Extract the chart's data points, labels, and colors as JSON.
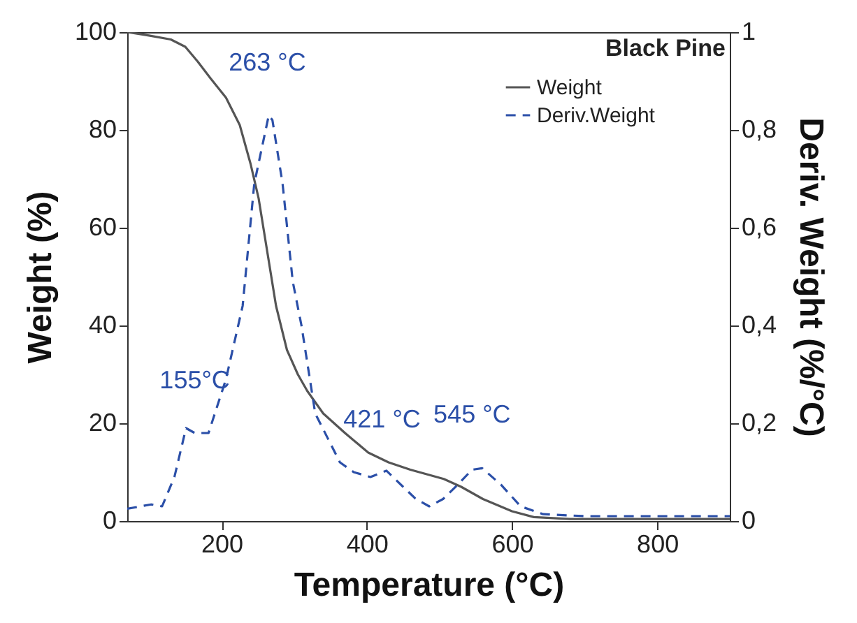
{
  "chart_data": {
    "type": "line",
    "xlabel": "Temperature (°C)",
    "ylabel": "Weight (%)",
    "y2label": "Deriv. Weight (%/°C)",
    "xlim": [
      70,
      900
    ],
    "xticks": [
      200,
      400,
      600,
      800
    ],
    "ylim": [
      0,
      100
    ],
    "yticks": [
      0,
      20,
      40,
      60,
      80,
      100
    ],
    "y2lim": [
      0,
      1
    ],
    "y2ticks": [
      {
        "value": 0,
        "label": "0"
      },
      {
        "value": 0.2,
        "label": "0,2"
      },
      {
        "value": 0.4,
        "label": "0,4"
      },
      {
        "value": 0.6,
        "label": "0,6"
      },
      {
        "value": 0.8,
        "label": "0,8"
      },
      {
        "value": 1,
        "label": "1"
      }
    ],
    "legend": "top right",
    "grid": false,
    "series": [
      {
        "name": "Weight",
        "color": "#555555",
        "line_style": "solid",
        "x": [
          70,
          100,
          130,
          150,
          167,
          185,
          206,
          225,
          240,
          251,
          263,
          275,
          290,
          305,
          318,
          340,
          370,
          402,
          430,
          460,
          506,
          530,
          560,
          600,
          630,
          680,
          900
        ],
        "values": [
          100,
          99.3,
          98.5,
          97,
          94,
          90.5,
          86.6,
          81,
          73,
          66,
          55,
          44,
          35,
          30,
          26.6,
          22,
          18,
          14,
          12,
          10.5,
          8.6,
          7,
          4.5,
          2,
          0.8,
          0.4,
          0.4
        ]
      },
      {
        "name": "Deriv.Weight",
        "color": "#2b4fa8",
        "line_style": "dashed",
        "axis": "y2",
        "x": [
          70,
          103,
          118,
          135,
          151,
          163,
          182,
          206,
          229,
          245,
          265,
          270,
          284,
          298,
          310,
          329,
          363,
          382,
          405,
          427,
          450,
          467,
          486,
          505,
          525,
          545,
          559,
          585,
          612,
          643,
          700,
          900
        ],
        "values": [
          0.025,
          0.034,
          0.03,
          0.09,
          0.19,
          0.18,
          0.18,
          0.29,
          0.44,
          0.69,
          0.83,
          0.82,
          0.69,
          0.49,
          0.4,
          0.22,
          0.12,
          0.1,
          0.09,
          0.103,
          0.07,
          0.046,
          0.03,
          0.045,
          0.074,
          0.105,
          0.108,
          0.074,
          0.03,
          0.014,
          0.01,
          0.01
        ]
      }
    ],
    "annotations": [
      "Black Pine",
      {
        "text": "263 °C",
        "x": 263,
        "y": 83
      },
      {
        "text": "155°C",
        "x": 163,
        "y": 18
      },
      {
        "text": "421 °C",
        "x": 421,
        "y": 10
      },
      {
        "text": "545 °C",
        "x": 545,
        "y": 11
      }
    ]
  }
}
